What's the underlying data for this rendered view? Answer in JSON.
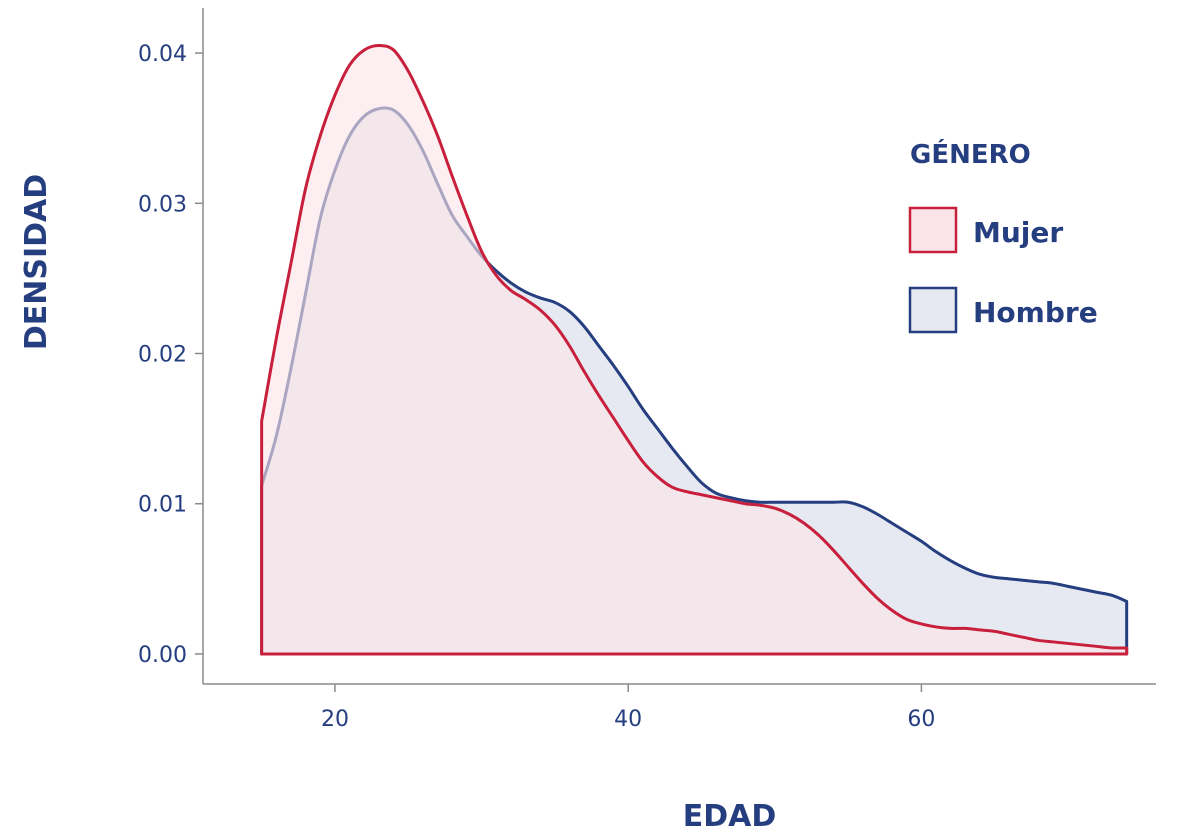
{
  "chart_data": {
    "type": "area",
    "xlabel": "EDAD",
    "ylabel": "DENSIDAD",
    "xlim": [
      11,
      76
    ],
    "ylim": [
      -0.002,
      0.043
    ],
    "xticks": [
      "20",
      "40",
      "60"
    ],
    "yticks": [
      "0.00",
      "0.01",
      "0.02",
      "0.03",
      "0.04"
    ],
    "legend": {
      "title": "GÉNERO",
      "position": "right"
    },
    "series": [
      {
        "name": "Mujer",
        "stroke": "#c8203c",
        "fill": "#fbe5e9",
        "x": [
          15,
          16,
          17,
          18,
          19,
          20,
          21,
          22,
          23,
          24,
          25,
          26,
          27,
          28,
          29,
          30,
          31,
          32,
          33,
          34,
          35,
          36,
          37,
          38,
          39,
          40,
          41,
          42,
          43,
          44,
          45,
          46,
          47,
          48,
          49,
          50,
          51,
          52,
          53,
          54,
          55,
          56,
          57,
          58,
          59,
          60,
          61,
          62,
          63,
          64,
          65,
          66,
          67,
          68,
          69,
          70,
          71,
          72,
          73,
          74
        ],
        "y": [
          0.0155,
          0.021,
          0.026,
          0.031,
          0.0345,
          0.0372,
          0.0392,
          0.0402,
          0.0405,
          0.0402,
          0.0388,
          0.0368,
          0.0345,
          0.0318,
          0.0292,
          0.0268,
          0.0252,
          0.0242,
          0.0236,
          0.0229,
          0.0219,
          0.0205,
          0.0188,
          0.0172,
          0.0157,
          0.0142,
          0.0128,
          0.0118,
          0.0111,
          0.0108,
          0.0106,
          0.0104,
          0.0102,
          0.01,
          0.0099,
          0.0097,
          0.0093,
          0.0087,
          0.0079,
          0.0069,
          0.0058,
          0.0047,
          0.0037,
          0.0029,
          0.0023,
          0.002,
          0.0018,
          0.0017,
          0.0017,
          0.0016,
          0.0015,
          0.0013,
          0.0011,
          0.0009,
          0.0008,
          0.0007,
          0.0006,
          0.0005,
          0.0004,
          0.0004
        ]
      },
      {
        "name": "Hombre",
        "stroke": "#253e80",
        "fill": "#e6e9f1",
        "x": [
          15,
          16,
          17,
          18,
          19,
          20,
          21,
          22,
          23,
          24,
          25,
          26,
          27,
          28,
          29,
          30,
          31,
          32,
          33,
          34,
          35,
          36,
          37,
          38,
          39,
          40,
          41,
          42,
          43,
          44,
          45,
          46,
          47,
          48,
          49,
          50,
          51,
          52,
          53,
          54,
          55,
          56,
          57,
          58,
          59,
          60,
          61,
          62,
          63,
          64,
          65,
          66,
          67,
          68,
          69,
          70,
          71,
          72,
          73,
          74
        ],
        "y": [
          0.0112,
          0.0145,
          0.019,
          0.024,
          0.029,
          0.0322,
          0.0345,
          0.0358,
          0.0363,
          0.0362,
          0.0352,
          0.0335,
          0.0313,
          0.0292,
          0.0278,
          0.0265,
          0.0255,
          0.0247,
          0.0241,
          0.0237,
          0.0234,
          0.0228,
          0.0218,
          0.0205,
          0.0192,
          0.0178,
          0.0163,
          0.015,
          0.0137,
          0.0125,
          0.0114,
          0.0107,
          0.0104,
          0.0102,
          0.0101,
          0.0101,
          0.0101,
          0.0101,
          0.0101,
          0.0101,
          0.0101,
          0.0098,
          0.0093,
          0.0087,
          0.0081,
          0.0075,
          0.0068,
          0.0062,
          0.0057,
          0.0053,
          0.0051,
          0.005,
          0.0049,
          0.0048,
          0.0047,
          0.0045,
          0.0043,
          0.0041,
          0.0039,
          0.0035
        ]
      }
    ]
  }
}
